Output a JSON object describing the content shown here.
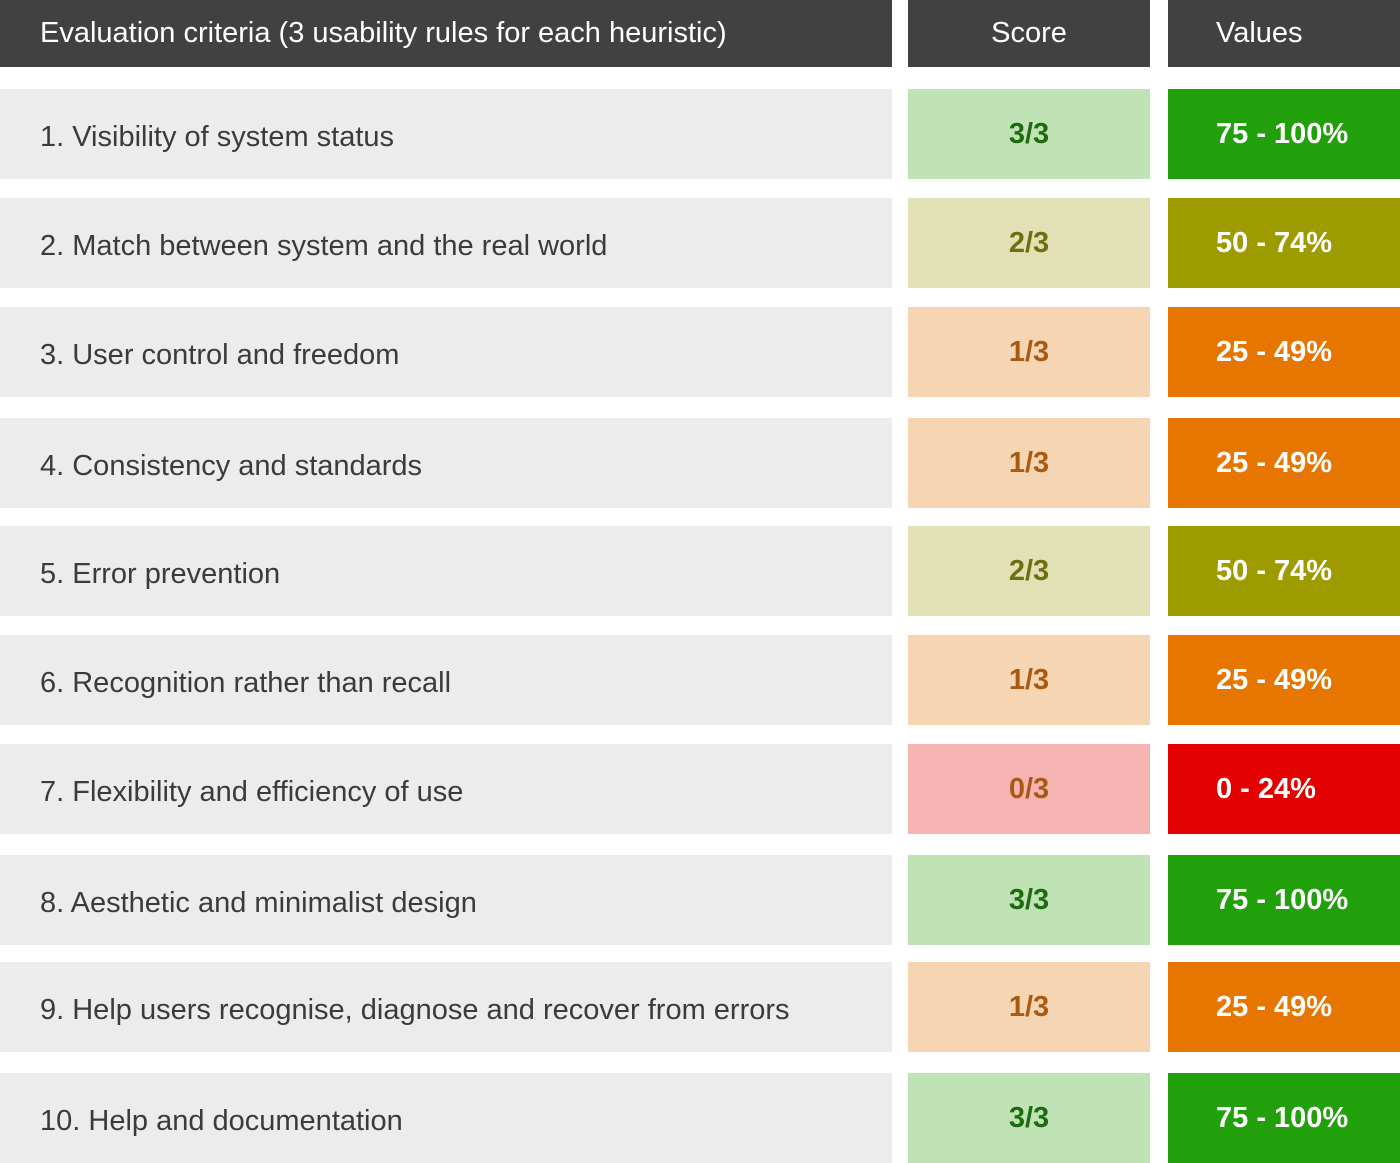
{
  "header": {
    "criteria": "Evaluation criteria (3 usability rules for each heuristic)",
    "score": "Score",
    "values": "Values"
  },
  "colors": {
    "header_bg": "#414141",
    "row_bg": "#ececec",
    "level_high": {
      "score_bg": "#bfe3b4",
      "score_text": "#1f6b12",
      "value_bg": "#22a00b"
    },
    "level_mid": {
      "score_bg": "#e1e1b5",
      "score_text": "#6f6f10",
      "value_bg": "#9d9b00"
    },
    "level_low": {
      "score_bg": "#f6d5b2",
      "score_text": "#a95a12",
      "value_bg": "#e77600"
    },
    "level_none": {
      "score_bg": "#f5b3b2",
      "score_text": "#a95a12",
      "value_bg": "#e30000"
    }
  },
  "rows": [
    {
      "criteria": "1. Visibility of system status",
      "score": "3/3",
      "value": "75 - 100%",
      "level": "high"
    },
    {
      "criteria": "2. Match between system and the real world",
      "score": "2/3",
      "value": "50 - 74%",
      "level": "mid"
    },
    {
      "criteria": "3. User control and freedom",
      "score": "1/3",
      "value": "25 - 49%",
      "level": "low"
    },
    {
      "criteria": "4. Consistency and standards",
      "score": "1/3",
      "value": "25 - 49%",
      "level": "low"
    },
    {
      "criteria": "5. Error prevention",
      "score": "2/3",
      "value": "50 - 74%",
      "level": "mid"
    },
    {
      "criteria": "6. Recognition rather than recall",
      "score": "1/3",
      "value": "25 - 49%",
      "level": "low"
    },
    {
      "criteria": "7. Flexibility and efficiency of use",
      "score": "0/3",
      "value": "0 - 24%",
      "level": "none"
    },
    {
      "criteria": "8. Aesthetic and minimalist design",
      "score": "3/3",
      "value": "75 - 100%",
      "level": "high"
    },
    {
      "criteria": "9. Help users recognise, diagnose and recover from errors",
      "score": "1/3",
      "value": "25 - 49%",
      "level": "low"
    },
    {
      "criteria": "10. Help and documentation",
      "score": "3/3",
      "value": "75 - 100%",
      "level": "high"
    }
  ]
}
